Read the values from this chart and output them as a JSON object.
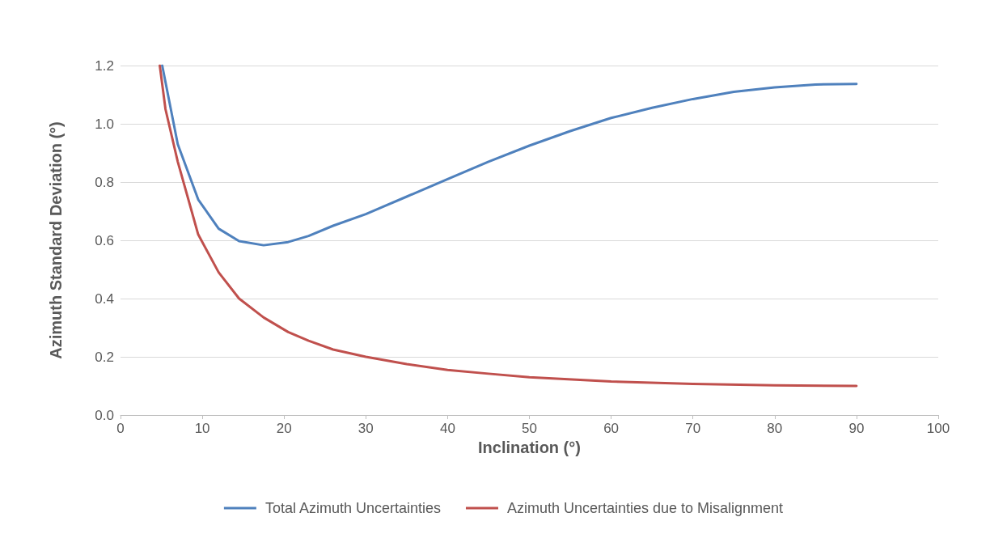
{
  "chart_data": {
    "type": "line",
    "xlabel": "Inclination (°)",
    "ylabel": "Azimuth Standard Deviation (°)",
    "xlim": [
      0,
      100
    ],
    "xticks": [
      0,
      10,
      20,
      30,
      40,
      50,
      60,
      70,
      80,
      90,
      100
    ],
    "ylim": [
      0,
      1.2
    ],
    "yticks": [
      {
        "value": 0,
        "label": "0.0"
      },
      {
        "value": 0.2,
        "label": "0.2"
      },
      {
        "value": 0.4,
        "label": "0.4"
      },
      {
        "value": 0.6,
        "label": "0.6"
      },
      {
        "value": 0.8,
        "label": "0.8"
      },
      {
        "value": 1,
        "label": "1.0"
      },
      {
        "value": 1.2,
        "label": "1.2"
      }
    ],
    "grid": "y",
    "legend": "bottom",
    "marker": "none",
    "line_style": "solid",
    "series": [
      {
        "name": "Total Azimuth Uncertainties",
        "color": "#4f81bd",
        "x": [
          5.1,
          7,
          9.5,
          12,
          14.5,
          17.5,
          20.5,
          23,
          26,
          30,
          35,
          40,
          45,
          50,
          55,
          60,
          65,
          70,
          75,
          80,
          85,
          90
        ],
        "values": [
          1.2,
          0.93,
          0.74,
          0.64,
          0.597,
          0.583,
          0.594,
          0.615,
          0.65,
          0.69,
          0.75,
          0.81,
          0.87,
          0.925,
          0.975,
          1.02,
          1.055,
          1.085,
          1.11,
          1.125,
          1.135,
          1.137
        ]
      },
      {
        "name": "Azimuth Uncertainties due to Misalignment",
        "color": "#c0504d",
        "x": [
          4.8,
          5.5,
          7,
          9.5,
          12,
          14.5,
          17.5,
          20.5,
          23,
          26,
          30,
          35,
          40,
          45,
          50,
          60,
          70,
          80,
          90
        ],
        "values": [
          1.2,
          1.05,
          0.87,
          0.62,
          0.49,
          0.4,
          0.335,
          0.285,
          0.255,
          0.225,
          0.2,
          0.175,
          0.155,
          0.142,
          0.13,
          0.115,
          0.107,
          0.102,
          0.1
        ]
      }
    ]
  }
}
